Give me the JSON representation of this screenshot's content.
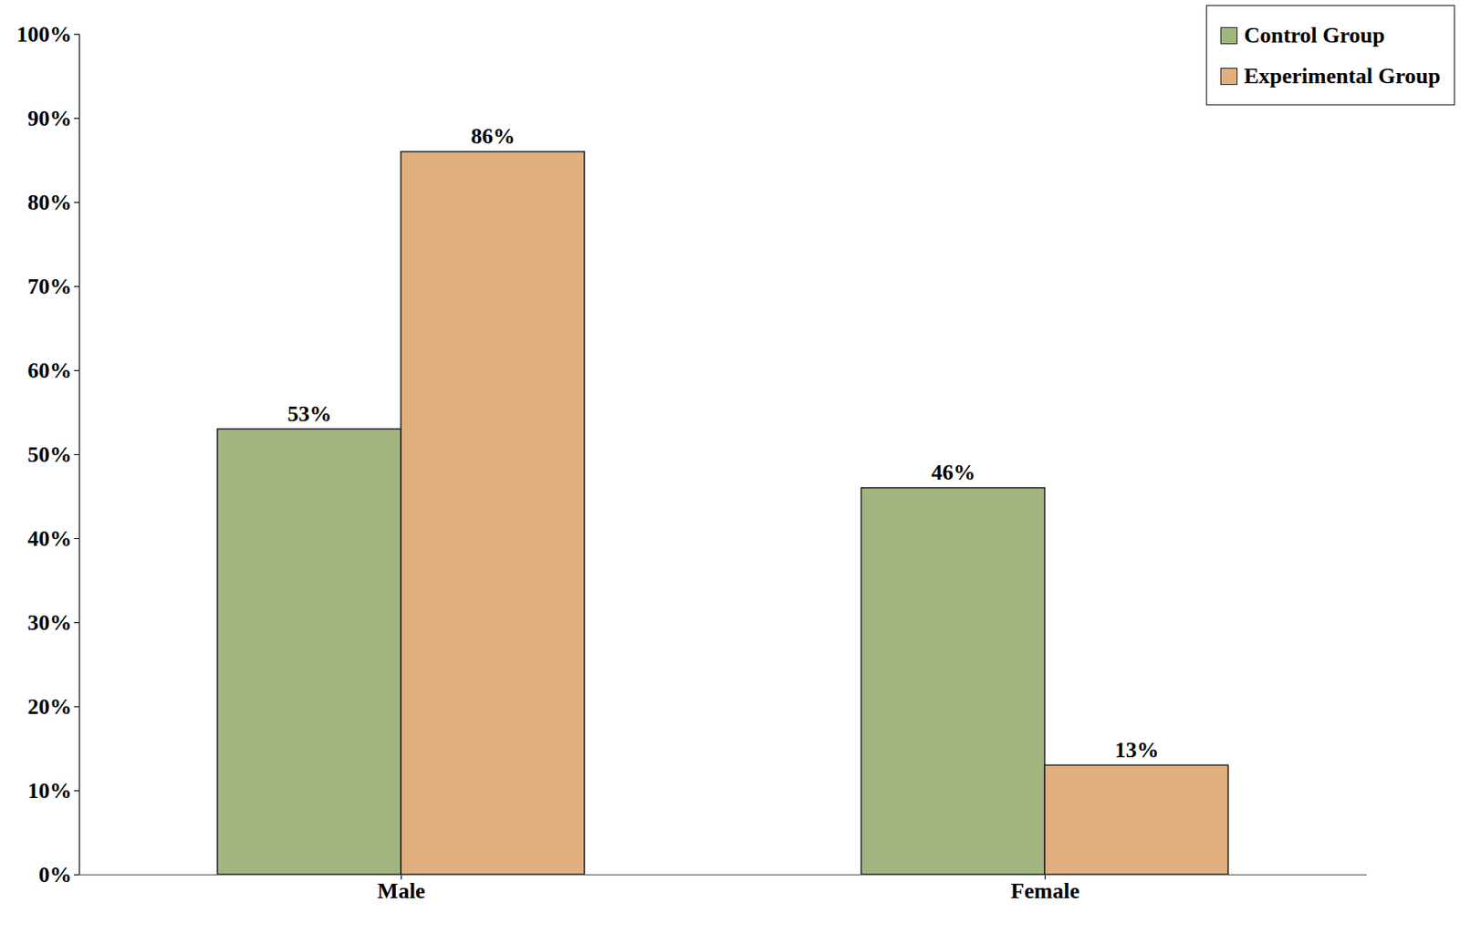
{
  "chart_data": {
    "type": "bar",
    "categories": [
      "Male",
      "Female"
    ],
    "series": [
      {
        "name": "Control Group",
        "color": "#a3b57e",
        "values": [
          53,
          46
        ],
        "value_labels": [
          "53%",
          "46%"
        ]
      },
      {
        "name": "Experimental Group",
        "color": "#e0b07f",
        "values": [
          86,
          13
        ],
        "value_labels": [
          "86%",
          "13%"
        ]
      }
    ],
    "ylim": [
      0,
      100
    ],
    "yticks": [
      {
        "value": 0,
        "label": "0%"
      },
      {
        "value": 10,
        "label": "10%"
      },
      {
        "value": 20,
        "label": "20%"
      },
      {
        "value": 30,
        "label": "30%"
      },
      {
        "value": 40,
        "label": "40%"
      },
      {
        "value": 50,
        "label": "50%"
      },
      {
        "value": 60,
        "label": "60%"
      },
      {
        "value": 70,
        "label": "70%"
      },
      {
        "value": 80,
        "label": "80%"
      },
      {
        "value": 90,
        "label": "90%"
      },
      {
        "value": 100,
        "label": "100%"
      }
    ],
    "grid": false,
    "legend": "top-right",
    "data_labels": true
  }
}
